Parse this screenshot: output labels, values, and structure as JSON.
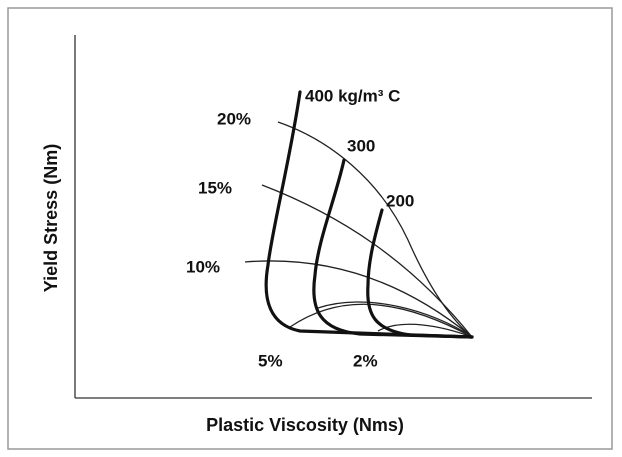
{
  "figure": {
    "x_axis_label": "Plastic Viscosity (Nms)",
    "y_axis_label": "Yield Stress (Nm)",
    "curve_labels": {
      "cement": [
        "400 kg/m³ C",
        "300",
        "200"
      ],
      "percent": [
        "20%",
        "15%",
        "10%",
        "5%",
        "2%"
      ]
    }
  }
}
